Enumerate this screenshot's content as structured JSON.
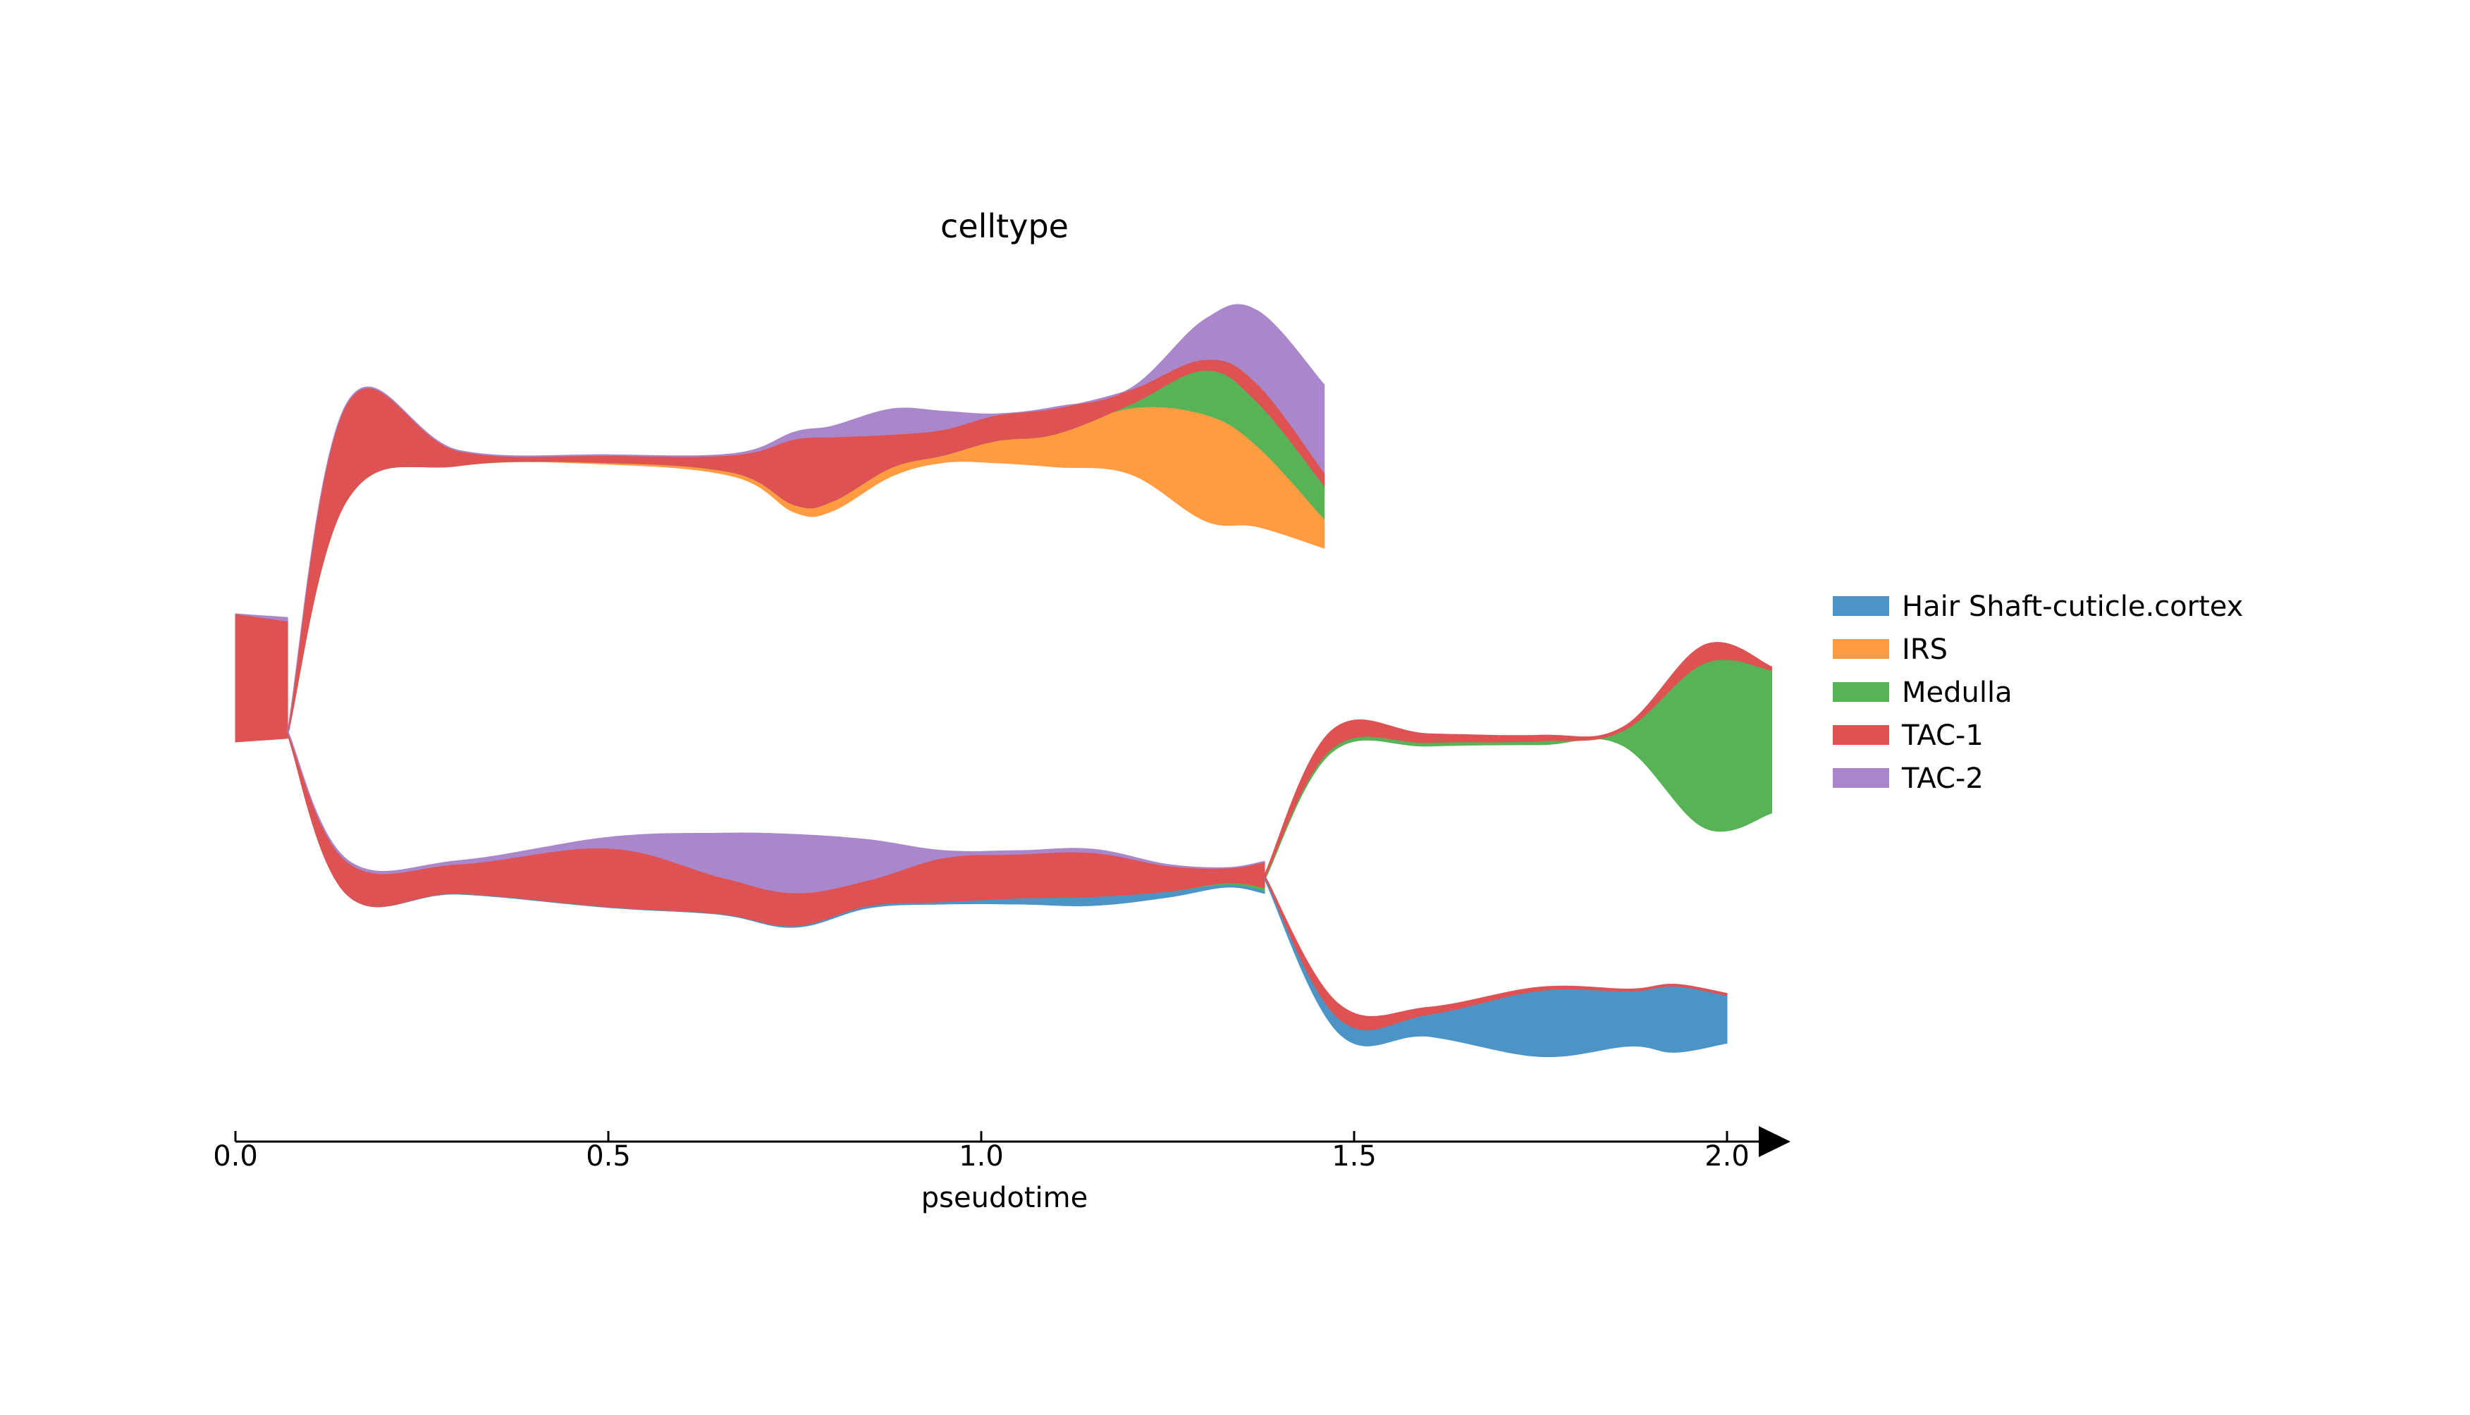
{
  "chart_data": {
    "type": "stream",
    "title": "celltype",
    "xlabel": "pseudotime",
    "xlim": [
      0.0,
      2.0
    ],
    "x_ticks": [
      "0.0",
      "0.5",
      "1.0",
      "1.5",
      "2.0"
    ],
    "grid": false,
    "legend_position": "right",
    "series": [
      {
        "name": "Hair Shaft-cuticle.cortex",
        "color": "#4d94c6"
      },
      {
        "name": "IRS",
        "color": "#ff9b41"
      },
      {
        "name": "Medulla",
        "color": "#57b356"
      },
      {
        "name": "TAC-1",
        "color": "#de5254"
      },
      {
        "name": "TAC-2",
        "color": "#a987ca"
      }
    ],
    "branches": [
      {
        "branch": "root",
        "x": [
          0.0,
          0.07
        ],
        "widths": {
          "Hair Shaft-cuticle.cortex": [
            0,
            0
          ],
          "IRS": [
            0,
            0
          ],
          "Medulla": [
            0,
            0
          ],
          "TAC-1": [
            1.75,
            1.6
          ],
          "TAC-2": [
            0,
            0.05
          ]
        }
      },
      {
        "branch": "upper",
        "x": [
          0.07,
          0.15,
          0.3,
          0.5,
          0.67,
          0.75,
          0.8,
          0.88,
          0.95,
          1.02,
          1.1,
          1.2,
          1.3,
          1.37,
          1.46
        ],
        "widths": {
          "Hair Shaft-cuticle.cortex": [
            0,
            0,
            0,
            0,
            0,
            0,
            0,
            0,
            0,
            0,
            0,
            0,
            0,
            0,
            0
          ],
          "IRS": [
            0,
            0,
            0,
            0.02,
            0.05,
            0.1,
            0.13,
            0.12,
            0.1,
            0.3,
            0.45,
            0.9,
            1.45,
            1.1,
            0.4
          ],
          "Medulla": [
            0,
            0,
            0,
            0,
            0,
            0,
            0,
            0,
            0,
            0,
            0,
            0.05,
            0.6,
            0.6,
            0.45
          ],
          "TAC-1": [
            0.07,
            1.32,
            0.2,
            0.1,
            0.25,
            0.9,
            0.88,
            0.45,
            0.35,
            0.35,
            0.35,
            0.2,
            0.15,
            0.25,
            0.18
          ],
          "TAC-2": [
            0,
            0.01,
            0.01,
            0.01,
            0.02,
            0.1,
            0.15,
            0.35,
            0.25,
            0.02,
            0.02,
            0.02,
            0.55,
            1.0,
            1.2
          ]
        }
      },
      {
        "branch": "lower",
        "x": [
          0.07,
          0.15,
          0.3,
          0.5,
          0.65,
          0.75,
          0.85,
          0.95,
          1.05,
          1.15,
          1.25,
          1.33,
          1.38
        ],
        "widths": {
          "Hair Shaft-cuticle.cortex": [
            0,
            0,
            0.01,
            0.01,
            0.01,
            0.02,
            0.03,
            0.03,
            0.08,
            0.12,
            0.08,
            0.04,
            0.04
          ],
          "IRS": [
            0,
            0,
            0,
            0,
            0,
            0,
            0,
            0,
            0,
            0,
            0,
            0,
            0
          ],
          "Medulla": [
            0,
            0,
            0,
            0,
            0,
            0,
            0,
            0,
            0,
            0,
            0,
            0.02,
            0.04
          ],
          "TAC-1": [
            0.05,
            0.45,
            0.4,
            0.8,
            0.5,
            0.45,
            0.35,
            0.6,
            0.6,
            0.6,
            0.35,
            0.2,
            0.35
          ],
          "TAC-2": [
            0.02,
            0.03,
            0.05,
            0.15,
            0.6,
            0.8,
            0.55,
            0.1,
            0.05,
            0.05,
            0.02,
            0.01,
            0.01
          ]
        }
      },
      {
        "branch": "lower-upper",
        "x": [
          1.38,
          1.47,
          1.6,
          1.75,
          1.86,
          1.97,
          2.06
        ],
        "widths": {
          "Hair Shaft-cuticle.cortex": [
            0,
            0,
            0,
            0,
            0,
            0,
            0
          ],
          "IRS": [
            0,
            0,
            0,
            0,
            0,
            0,
            0
          ],
          "Medulla": [
            0.03,
            0.05,
            0.05,
            0.05,
            0.2,
            2.25,
            1.95
          ],
          "TAC-1": [
            0.05,
            0.25,
            0.12,
            0.08,
            0.05,
            0.25,
            0.05
          ],
          "TAC-2": [
            0,
            0,
            0,
            0,
            0,
            0,
            0
          ]
        }
      },
      {
        "branch": "lower-lower",
        "x": [
          1.38,
          1.48,
          1.6,
          1.75,
          1.87,
          1.93,
          2.0
        ],
        "widths": {
          "Hair Shaft-cuticle.cortex": [
            0.03,
            0.2,
            0.3,
            0.9,
            0.75,
            0.9,
            0.65
          ],
          "IRS": [
            0,
            0,
            0,
            0,
            0,
            0,
            0
          ],
          "Medulla": [
            0,
            0,
            0,
            0,
            0,
            0,
            0
          ],
          "TAC-1": [
            0.03,
            0.2,
            0.1,
            0.05,
            0.03,
            0.03,
            0.03
          ],
          "TAC-2": [
            0,
            0,
            0,
            0,
            0,
            0,
            0
          ]
        }
      }
    ]
  }
}
